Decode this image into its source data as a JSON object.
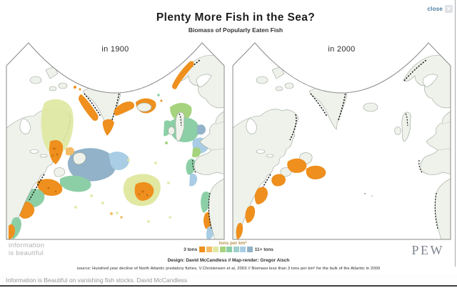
{
  "header": {
    "close_label": "close",
    "close_glyph": "×",
    "title": "Plenty More Fish in the Sea?",
    "subtitle": "Biomass of Popularly Eaten Fish"
  },
  "maps": {
    "left_label": "in 1900",
    "right_label": "in 2000"
  },
  "legend": {
    "title": "tons per km²",
    "min_label": "3 tons",
    "max_label": "11+ tons",
    "colors": [
      "#ee8f1e",
      "#f4bc66",
      "#e0e8a2",
      "#a6d37e",
      "#8ccfa6",
      "#9ed0ce",
      "#a9cde4",
      "#91b2c8"
    ]
  },
  "footer": {
    "credits": "Design: David McCandless // Map-render: Gregor Aisch",
    "source": "source: Hundred year decline of North Atlantic predatory fishes, V.Christensen et al, 2003 // Biomass less than 3 tons per km² for the bulk of the Atlantic in 2000"
  },
  "branding": {
    "logo_line1": "information",
    "logo_line2": "is beautiful",
    "partner": "PEW"
  },
  "statusbar": {
    "text": "Information is Beautiful on vanishing fish stocks. David McCandless"
  }
}
